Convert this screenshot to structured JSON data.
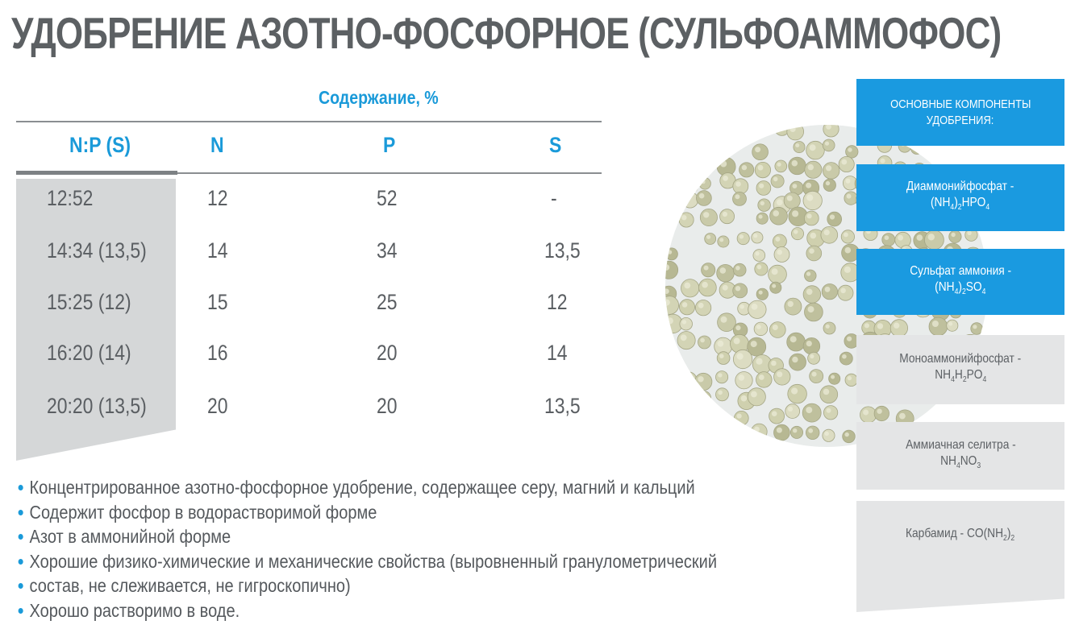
{
  "title": "УДОБРЕНИЕ АЗОТНО-ФОСФОРНОЕ (СУЛЬФОАММОФОС)",
  "table": {
    "content_header": "Содержание, %",
    "columns": [
      "N:P (S)",
      "N",
      "P",
      "S"
    ],
    "rows": [
      [
        "12:52",
        "12",
        "52",
        "-"
      ],
      [
        "14:34 (13,5)",
        "14",
        "34",
        "13,5"
      ],
      [
        "15:25 (12)",
        "15",
        "25",
        "12"
      ],
      [
        "16:20 (14)",
        "16",
        "20",
        "14"
      ],
      [
        "20:20 (13,5)",
        "20",
        "20",
        "13,5"
      ]
    ]
  },
  "bullets": [
    "Концентрированное азотно-фосфорное удобрение, содержащее серу, магний и кальций",
    "Содержит фосфор в водорастворимой форме",
    "Азот в аммонийной форме",
    "Хорошие физико-химические и механические свойства (выровненный гранулометрический",
    "состав, не слеживается, не гигроскопично)",
    "Хорошо растворимо в воде."
  ],
  "components": {
    "header_line1": "ОСНОВНЫЕ КОМПОНЕНТЫ",
    "header_line2": "УДОБРЕНИЯ:",
    "c1_name": "Диаммонийфосфат -",
    "c2_name": "Сульфат аммония -",
    "c3_name": "Моноаммонийфосфат -",
    "c4_name": "Аммиачная селитра -",
    "c5_name": "Карбамид -"
  },
  "colors": {
    "accent": "#1a9ae0",
    "gray_panel": "#e4e5e6",
    "text": "#5a5e62"
  },
  "image": {
    "icon": "fertilizer-granules-photo"
  }
}
